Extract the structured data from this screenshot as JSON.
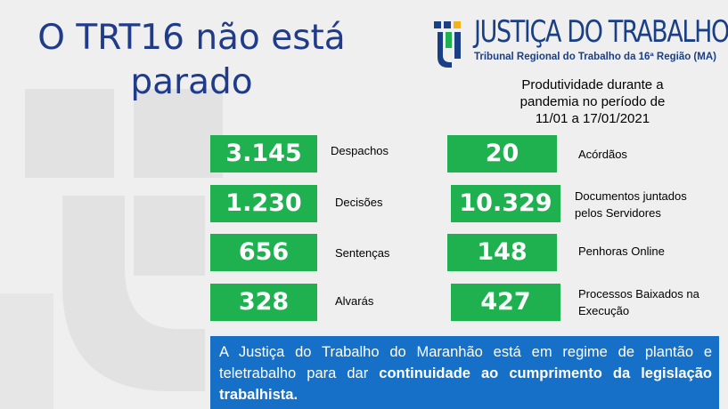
{
  "headline": {
    "line1": "O TRT16 não está",
    "line2": "parado"
  },
  "logo": {
    "title": "JUSTIÇA DO TRABALHO",
    "subtitle": "Tribunal Regional do Trabalho da 16ª Região (MA)"
  },
  "period": {
    "line1": "Produtividade durante a",
    "line2": "pandemia no período de",
    "line3": "11/01 a 17/01/2021"
  },
  "stats_left": [
    {
      "value": "3.145",
      "label": "Despachos"
    },
    {
      "value": "1.230",
      "label": "Decisões"
    },
    {
      "value": "656",
      "label": "Sentenças"
    },
    {
      "value": "328",
      "label": "Alvarás"
    }
  ],
  "stats_right": [
    {
      "value": "20",
      "label_line1": "Acórdãos",
      "label_line2": ""
    },
    {
      "value": "10.329",
      "label_line1": "Documentos juntados",
      "label_line2": "pelos Servidores"
    },
    {
      "value": "148",
      "label_line1": "Penhoras Online",
      "label_line2": ""
    },
    {
      "value": "427",
      "label_line1": "Processos Baixados na",
      "label_line2": "Execução"
    }
  ],
  "notice": {
    "text_plain": "A Justiça do Trabalho do Maranhão está em regime de plantão e teletrabalho para dar ",
    "text_bold": "continuidade ao cumprimento da legislação trabalhista."
  },
  "colors": {
    "green": "#1fb050",
    "blue_box": "#1670c8",
    "title_blue": "#1f3b8a",
    "logo_blue": "#1b3f85",
    "logo_yellow": "#f3b215"
  }
}
